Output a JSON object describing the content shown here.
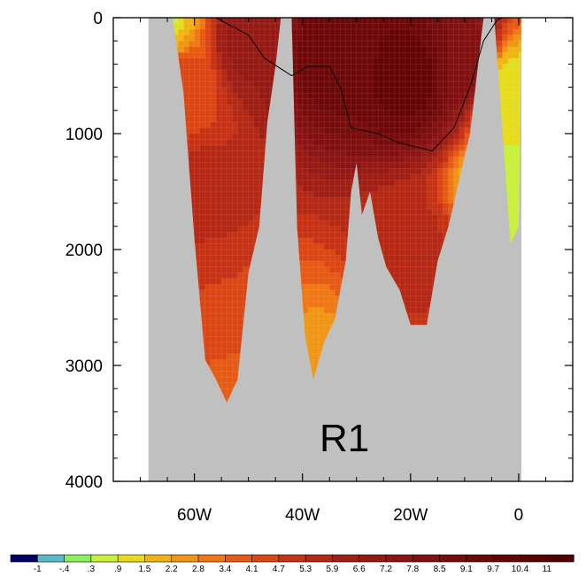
{
  "chart_data": {
    "type": "heatmap",
    "panel_label": "R1",
    "x_axis": {
      "range_deg_east": [
        -75,
        10
      ],
      "tick_values": [
        -60,
        -40,
        -20,
        0
      ],
      "tick_labels": [
        "60W",
        "40W",
        "20W",
        "0"
      ]
    },
    "y_axis": {
      "range_m": [
        0,
        4000
      ],
      "inverted": true,
      "tick_values": [
        0,
        1000,
        2000,
        3000,
        4000
      ],
      "tick_labels": [
        "0",
        "1000",
        "2000",
        "3000",
        "4000"
      ]
    },
    "land_color": "#c0c0c0",
    "ocean_bottom_profile": [
      [
        -68.5,
        0
      ],
      [
        -66.5,
        0
      ],
      [
        -64,
        0
      ],
      [
        -62,
        650
      ],
      [
        -60,
        1900
      ],
      [
        -58,
        2950
      ],
      [
        -56,
        3120
      ],
      [
        -54,
        3320
      ],
      [
        -52,
        3120
      ],
      [
        -50,
        2200
      ],
      [
        -48,
        1800
      ],
      [
        -46.5,
        900
      ],
      [
        -45,
        420
      ],
      [
        -44,
        0
      ],
      [
        -42,
        0
      ],
      [
        -41,
        1800
      ],
      [
        -39.5,
        2750
      ],
      [
        -38,
        3120
      ],
      [
        -36,
        2800
      ],
      [
        -34,
        2600
      ],
      [
        -32,
        2100
      ],
      [
        -31,
        1500
      ],
      [
        -30,
        1250
      ],
      [
        -29,
        1700
      ],
      [
        -27.5,
        1500
      ],
      [
        -26,
        1900
      ],
      [
        -24.5,
        2150
      ],
      [
        -22,
        2350
      ],
      [
        -20,
        2650
      ],
      [
        -17,
        2650
      ],
      [
        -15,
        2100
      ],
      [
        -13,
        1800
      ],
      [
        -11,
        1400
      ],
      [
        -9,
        1000
      ],
      [
        -7.5,
        400
      ],
      [
        -6.5,
        0
      ],
      [
        -4.5,
        0
      ],
      [
        -3.5,
        650
      ],
      [
        -1.5,
        1950
      ],
      [
        0,
        1800
      ],
      [
        0.5,
        0
      ]
    ],
    "temperature_samples_degC": [
      {
        "lon": -67,
        "depth": 100,
        "t": 0.3
      },
      {
        "lon": -66,
        "depth": 300,
        "t": 2.0
      },
      {
        "lon": -63,
        "depth": 500,
        "t": 4.5
      },
      {
        "lon": -58,
        "depth": 1500,
        "t": 5.5
      },
      {
        "lon": -55,
        "depth": 2500,
        "t": 4.7
      },
      {
        "lon": -53,
        "depth": 3200,
        "t": 4.0
      },
      {
        "lon": -50,
        "depth": 200,
        "t": 6.8
      },
      {
        "lon": -35,
        "depth": 300,
        "t": 9.5
      },
      {
        "lon": -38,
        "depth": 2950,
        "t": 2.6
      },
      {
        "lon": -20,
        "depth": 500,
        "t": 10.0
      },
      {
        "lon": -20,
        "depth": 2000,
        "t": 5.5
      },
      {
        "lon": -10,
        "depth": 400,
        "t": 8.5
      },
      {
        "lon": -2,
        "depth": 600,
        "t": 1.0
      },
      {
        "lon": -2,
        "depth": 1500,
        "t": 0.3
      }
    ],
    "contour_8C": [
      [
        -56,
        0
      ],
      [
        -50,
        150
      ],
      [
        -47,
        350
      ],
      [
        -42,
        500
      ],
      [
        -39,
        420
      ],
      [
        -35,
        420
      ],
      [
        -33,
        600
      ],
      [
        -31,
        950
      ],
      [
        -26,
        1000
      ],
      [
        -22,
        1080
      ],
      [
        -16,
        1150
      ],
      [
        -12,
        950
      ],
      [
        -9,
        600
      ],
      [
        -6.5,
        200
      ],
      [
        -4,
        20
      ],
      [
        -3,
        0
      ]
    ],
    "colorbar": {
      "levels": [
        "-1",
        "-.4",
        ".3",
        ".9",
        "1.5",
        "2.2",
        "2.8",
        "3.4",
        "4.1",
        "4.7",
        "5.3",
        "5.9",
        "6.6",
        "7.2",
        "7.8",
        "8.5",
        "9.1",
        "9.7",
        "10.4",
        "11"
      ],
      "colors": [
        "#000066",
        "#5ab9c6",
        "#8cf05a",
        "#c8f03c",
        "#e6dc1e",
        "#f0b414",
        "#f09614",
        "#f07814",
        "#e65a14",
        "#dc4614",
        "#c83214",
        "#b42814",
        "#a01e14",
        "#961914",
        "#8c1414",
        "#821010",
        "#780c0c",
        "#6e0808",
        "#640404",
        "#5a0202",
        "#500000"
      ]
    }
  }
}
